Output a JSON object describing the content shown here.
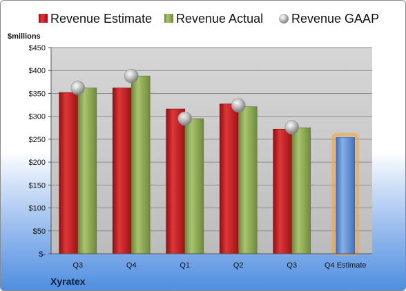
{
  "company": "Xyratex",
  "unit_label": "$millions",
  "colors": {
    "estimate": "#c0171b",
    "actual": "#8fa854",
    "gaap": "#b8b8b8",
    "forecast": "#5b8fd6",
    "forecast_glow": "#f6a53a"
  },
  "chart_data": {
    "type": "bar",
    "categories": [
      "Q3",
      "Q4",
      "Q1",
      "Q2",
      "Q3",
      "Q4 Estimate"
    ],
    "series": [
      {
        "name": "Revenue Estimate",
        "values": [
          352,
          362,
          316,
          327,
          272,
          null
        ]
      },
      {
        "name": "Revenue Actual",
        "values": [
          362,
          388,
          295,
          321,
          275,
          null
        ]
      },
      {
        "name": "Revenue GAAP",
        "values": [
          362,
          388,
          295,
          324,
          276,
          null
        ]
      }
    ],
    "forecast": {
      "category": "Q4 Estimate",
      "value": 254
    },
    "ylabel": "$millions",
    "ylim": [
      0,
      450
    ],
    "yticks": [
      0,
      50,
      100,
      150,
      200,
      250,
      300,
      350,
      400,
      450
    ],
    "ytick_labels": [
      "$-",
      "$50",
      "$100",
      "$150",
      "$200",
      "$250",
      "$300",
      "$350",
      "$400",
      "$450"
    ],
    "grid": true,
    "legend": "top"
  }
}
